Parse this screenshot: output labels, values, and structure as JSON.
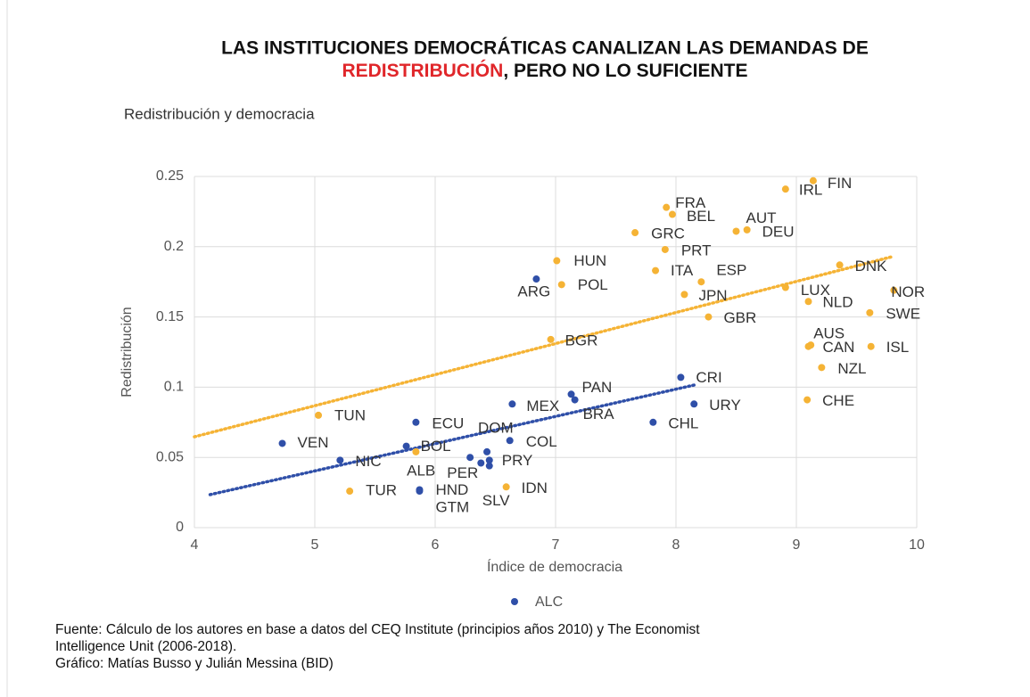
{
  "chart_data": {
    "type": "scatter",
    "title_line1": "LAS INSTITUCIONES DEMOCRÁTICAS CANALIZAN LAS DEMANDAS DE",
    "title_highlight": "REDISTRIBUCIÓN",
    "title_rest": ", PERO NO LO SUFICIENTE",
    "subtitle": "Redistribución y democracia",
    "xlabel": "Índice de democracia",
    "ylabel": "Redistribución",
    "xlim": [
      4,
      10
    ],
    "xticks": [
      4,
      5,
      6,
      7,
      8,
      9,
      10
    ],
    "ylim": [
      0,
      0.25
    ],
    "yticks": [
      0,
      0.05,
      0.1,
      0.15,
      0.2,
      0.25
    ],
    "grid": true,
    "series": [
      {
        "name": "ALC",
        "color": "#2f4fa8",
        "labels": [
          "VEN",
          "NIC",
          "BOL",
          "ECU",
          "HND",
          "GTM",
          "ALB",
          "PER",
          "DOM",
          "PRY",
          "SLV",
          "COL",
          "MEX",
          "ARG",
          "PAN",
          "BRA",
          "CHL",
          "CRI",
          "URY"
        ],
        "x": [
          4.73,
          5.21,
          5.76,
          5.84,
          5.87,
          5.87,
          6.29,
          6.38,
          6.43,
          6.45,
          6.45,
          6.62,
          6.64,
          6.84,
          7.13,
          7.16,
          7.81,
          8.04,
          8.15
        ],
        "values": [
          0.06,
          0.048,
          0.058,
          0.075,
          0.027,
          0.026,
          0.05,
          0.046,
          0.054,
          0.048,
          0.044,
          0.062,
          0.088,
          0.177,
          0.095,
          0.091,
          0.075,
          0.107,
          0.088
        ],
        "trend": {
          "x": [
            4.13,
            8.15
          ],
          "values": [
            0.0235,
            0.1015
          ]
        }
      },
      {
        "color": "#f5b335",
        "labels": [
          "TUN",
          "TUR",
          null,
          "IDN",
          "BGR",
          "HUN",
          "POL",
          "GRC",
          "ITA",
          "PRT",
          "FRA",
          "BEL",
          "ESP",
          "JPN",
          "GBR",
          "AUT",
          "DEU",
          "IRL",
          "FIN",
          "LUX",
          "NLD",
          "DNK",
          "NOR",
          "SWE",
          "AUS",
          "CAN",
          "ISL",
          "NZL",
          "CHE"
        ],
        "x": [
          5.03,
          5.29,
          5.84,
          6.59,
          6.96,
          7.01,
          7.05,
          7.66,
          7.83,
          7.91,
          7.92,
          7.97,
          8.21,
          8.07,
          8.27,
          8.5,
          8.59,
          8.91,
          9.14,
          8.91,
          9.1,
          9.36,
          9.81,
          9.61,
          9.12,
          9.1,
          9.62,
          9.21,
          9.09
        ],
        "values": [
          0.08,
          0.026,
          0.054,
          0.029,
          0.134,
          0.19,
          0.173,
          0.21,
          0.183,
          0.198,
          0.228,
          0.223,
          0.175,
          0.166,
          0.15,
          0.211,
          0.212,
          0.241,
          0.247,
          0.171,
          0.161,
          0.187,
          0.169,
          0.153,
          0.13,
          0.129,
          0.129,
          0.114,
          0.091
        ],
        "trend": {
          "x": [
            4.0,
            9.8
          ],
          "values": [
            0.0647,
            0.193
          ]
        }
      }
    ],
    "source_line1": "Fuente: Cálculo de los autores en base a datos del CEQ Institute (principios años 2010) y The Economist",
    "source_line2": "Intelligence Unit (2006-2018).",
    "source_line3": "Gráfico: Matías Busso y Julián Messina (BID)"
  }
}
